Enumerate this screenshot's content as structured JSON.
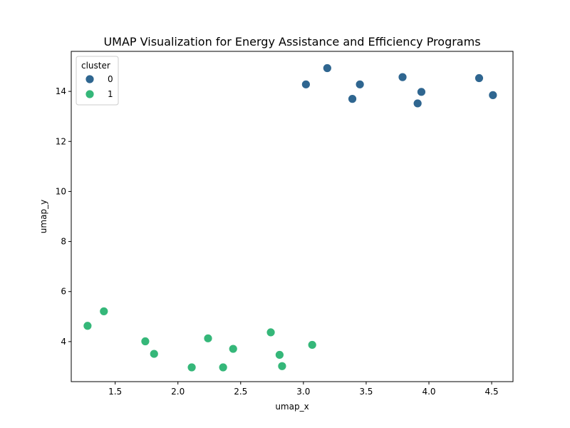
{
  "chart_data": {
    "type": "scatter",
    "title": "UMAP Visualization for Energy Assistance and Efficiency Programs",
    "xlabel": "umap_x",
    "ylabel": "umap_y",
    "xlim": [
      1.15,
      4.67
    ],
    "ylim": [
      2.4,
      15.6
    ],
    "xticks": [
      "1.5",
      "2.0",
      "2.5",
      "3.0",
      "3.5",
      "4.0",
      "4.5"
    ],
    "yticks": [
      "4",
      "6",
      "8",
      "10",
      "12",
      "14"
    ],
    "grid": false,
    "legend": {
      "title": "cluster",
      "placement": "top-left"
    },
    "series": [
      {
        "name": "0",
        "color": "#2f6690",
        "points": [
          {
            "x": 3.02,
            "y": 14.28
          },
          {
            "x": 3.19,
            "y": 14.93
          },
          {
            "x": 3.39,
            "y": 13.7
          },
          {
            "x": 3.45,
            "y": 14.28
          },
          {
            "x": 3.79,
            "y": 14.57
          },
          {
            "x": 3.91,
            "y": 13.52
          },
          {
            "x": 3.94,
            "y": 13.98
          },
          {
            "x": 4.4,
            "y": 14.53
          },
          {
            "x": 4.51,
            "y": 13.85
          }
        ]
      },
      {
        "name": "1",
        "color": "#35b779",
        "points": [
          {
            "x": 1.28,
            "y": 4.63
          },
          {
            "x": 1.41,
            "y": 5.21
          },
          {
            "x": 1.74,
            "y": 4.01
          },
          {
            "x": 1.81,
            "y": 3.51
          },
          {
            "x": 2.11,
            "y": 2.97
          },
          {
            "x": 2.24,
            "y": 4.13
          },
          {
            "x": 2.36,
            "y": 2.97
          },
          {
            "x": 2.44,
            "y": 3.71
          },
          {
            "x": 2.74,
            "y": 4.37
          },
          {
            "x": 2.81,
            "y": 3.47
          },
          {
            "x": 2.83,
            "y": 3.02
          },
          {
            "x": 3.07,
            "y": 3.87
          }
        ]
      }
    ]
  }
}
